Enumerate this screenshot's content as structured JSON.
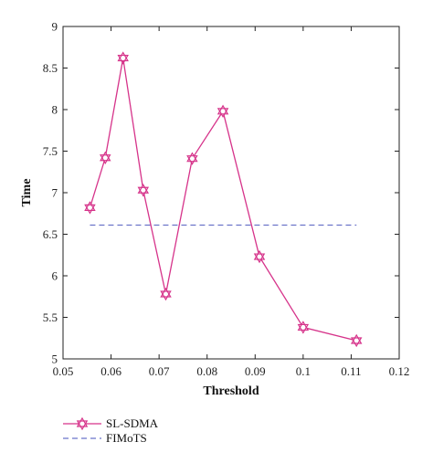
{
  "chart_data": {
    "type": "line",
    "xlabel": "Threshold",
    "ylabel": "Time",
    "xlim": [
      0.05,
      0.12
    ],
    "ylim": [
      5,
      9
    ],
    "xticks": [
      "0.05",
      "0.06",
      "0.07",
      "0.08",
      "0.09",
      "0.1",
      "0.11",
      "0.12"
    ],
    "yticks": [
      "5",
      "5.5",
      "6",
      "6.5",
      "7",
      "7.5",
      "8",
      "8.5",
      "9"
    ],
    "grid": false,
    "legend_position": "bottom-left",
    "series": [
      {
        "name": "SL-SDMA",
        "style": "solid",
        "marker": "hexagram",
        "color": "#d6338a",
        "x": [
          0.0556,
          0.0588,
          0.0625,
          0.0667,
          0.0714,
          0.0769,
          0.0833,
          0.0909,
          0.1,
          0.1111
        ],
        "y": [
          6.82,
          7.42,
          8.62,
          7.03,
          5.78,
          7.41,
          7.98,
          6.23,
          5.38,
          5.22
        ]
      },
      {
        "name": "FIMoTS",
        "style": "dashed",
        "marker": "none",
        "color": "#6b74c9",
        "x": [
          0.0556,
          0.1111
        ],
        "y": [
          6.61,
          6.61
        ]
      }
    ]
  }
}
